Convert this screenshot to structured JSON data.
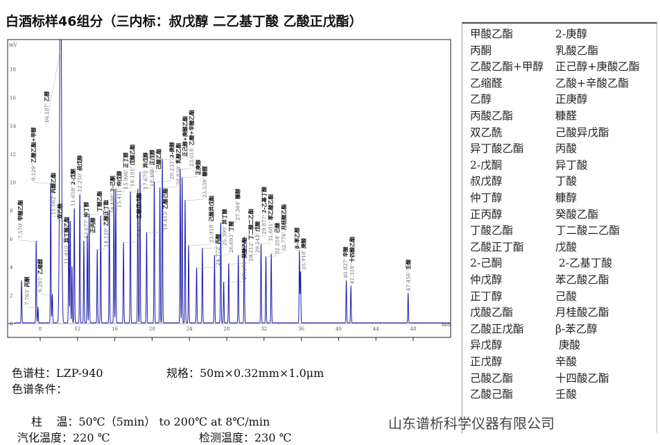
{
  "title": "白酒标样46组分（三内标：叔戊醇 二乙基丁酸 乙酸正戊酯）",
  "chart_data": {
    "type": "line",
    "title": "白酒标样46组分（三内标：叔戊醇 二乙基丁酸 乙酸正戊酯）",
    "ylabel": "mV",
    "xlabel": "min",
    "xlim": [
      4.5,
      52
    ],
    "ylim": [
      0,
      20
    ],
    "x_ticks": [
      8,
      12,
      16,
      20,
      24,
      28,
      32,
      36,
      40,
      44,
      48
    ],
    "y_ticks": [
      0,
      2,
      4,
      6,
      8,
      10,
      12,
      14,
      16,
      18
    ],
    "line_color": "#1a1aa8",
    "peaks": [
      {
        "t": 6.0,
        "h": 3.0,
        "time": "",
        "name": ""
      },
      {
        "t": 7.57,
        "h": 5.8,
        "time": "7.570",
        "name": "甲酸乙酯"
      },
      {
        "t": 7.763,
        "h": 1.1,
        "time": "7.763",
        "name": "丙酮"
      },
      {
        "t": 9.129,
        "h": 9.9,
        "time": "9.129",
        "name": "乙酸乙酯+甲醇"
      },
      {
        "t": 9.297,
        "h": 2.0,
        "time": "9.297",
        "name": "乙缩醛"
      },
      {
        "t": 10.187,
        "h": 30,
        "time": "10.187",
        "name": "乙醇"
      },
      {
        "t": 11.062,
        "h": 7.5,
        "time": "11.062",
        "name": "丙酸乙酯"
      },
      {
        "t": 11.22,
        "h": 7.2,
        "time": "",
        "name": "双乙酰"
      },
      {
        "t": 11.41,
        "h": 4.0,
        "time": "11.410",
        "name": "异丁酸乙酯"
      },
      {
        "t": 11.659,
        "h": 8.1,
        "time": "11.659",
        "name": "2-戊酮"
      },
      {
        "t": 12.25,
        "h": 9.1,
        "time": "12.250",
        "name": "叔戊醇"
      },
      {
        "t": 12.677,
        "h": 5.8,
        "time": "12.677",
        "name": "仲丁醇"
      },
      {
        "t": 13.05,
        "h": 6.2,
        "time": "",
        "name": "正丙醇"
      },
      {
        "t": 13.25,
        "h": 7.7,
        "time": "",
        "name": "丁酸乙酯"
      },
      {
        "t": 14.12,
        "h": 5.2,
        "time": "14.120",
        "name": "乙酸正丁酯"
      },
      {
        "t": 14.488,
        "h": 7.6,
        "time": "14.488",
        "name": "2-己酮"
      },
      {
        "t": 15.411,
        "h": 8.0,
        "time": "15.411",
        "name": "仲戊醇"
      },
      {
        "t": 15.906,
        "h": 9.3,
        "time": "15.906",
        "name": "正丁醇"
      },
      {
        "t": 16.101,
        "h": 9.5,
        "time": "16.101",
        "name": "戊酸乙酯"
      },
      {
        "t": 16.933,
        "h": 5.7,
        "time": "16.933",
        "name": "乙酸正戊酯"
      },
      {
        "t": 17.675,
        "h": 9.3,
        "time": "17.675",
        "name": "异戊醇"
      },
      {
        "t": 18.466,
        "h": 9.5,
        "time": "18.466",
        "name": "正戊醇"
      },
      {
        "t": 18.7,
        "h": 10.7,
        "time": "",
        "name": "己酸乙酯"
      },
      {
        "t": 19.413,
        "h": 6.4,
        "time": "19.413",
        "name": "乙酸己酯"
      },
      {
        "t": 20.233,
        "h": 10.0,
        "time": "20.233",
        "name": "2-庚醇"
      },
      {
        "t": 20.838,
        "h": 9.6,
        "time": "20.838",
        "name": "乳酸乙酯"
      },
      {
        "t": 21.1,
        "h": 11.6,
        "time": "",
        "name": "正己醇+庚酸乙酯"
      },
      {
        "t": 23.018,
        "h": 10.9,
        "time": "23.018",
        "name": "乙酸+辛酸乙酯"
      },
      {
        "t": 23.22,
        "h": 10.3,
        "time": "",
        "name": "正庚醇"
      },
      {
        "t": 23.539,
        "h": 8.7,
        "time": "23.539",
        "name": "糠醛"
      },
      {
        "t": 23.918,
        "h": 5.5,
        "time": "23.918",
        "name": "己酸异戊酯"
      },
      {
        "t": 24.772,
        "h": 3.9,
        "time": "24.772",
        "name": "丙酸"
      },
      {
        "t": 25.39,
        "h": 5.3,
        "time": "25.390",
        "name": "异丁酸"
      },
      {
        "t": 26.693,
        "h": 4.8,
        "time": "26.693",
        "name": "丁酸"
      },
      {
        "t": 27.364,
        "h": 7.1,
        "time": "27.364",
        "name": "糠醇"
      },
      {
        "t": 27.679,
        "h": 2.9,
        "time": "27.679",
        "name": "癸酸乙酯"
      },
      {
        "t": 28.212,
        "h": 4.2,
        "time": "28.212",
        "name": "丁二酸二乙酯"
      },
      {
        "t": 29.243,
        "h": 4.8,
        "time": "29.243",
        "name": "戊酸"
      },
      {
        "t": 29.877,
        "h": 6.1,
        "time": "29.877",
        "name": "2-乙基丁酸"
      },
      {
        "t": 31.681,
        "h": 5.6,
        "time": "31.681",
        "name": "苯乙酸乙酯"
      },
      {
        "t": 32.204,
        "h": 4.7,
        "time": "32.204",
        "name": "己酸"
      },
      {
        "t": 32.776,
        "h": 4.9,
        "time": "32.776",
        "name": "月桂酸乙酯"
      },
      {
        "t": 35.8,
        "h": 5.1,
        "time": "",
        "name": "β-苯乙醇"
      },
      {
        "t": 35.918,
        "h": 3.6,
        "time": "35.918",
        "name": "庚酸"
      },
      {
        "t": 40.827,
        "h": 3.0,
        "time": "40.827",
        "name": "辛酸"
      },
      {
        "t": 41.318,
        "h": 2.6,
        "time": "41.318",
        "name": "十四酸乙酯"
      },
      {
        "t": 47.456,
        "h": 2.1,
        "time": "47.456",
        "name": "壬酸"
      }
    ]
  },
  "legend": {
    "col1": [
      "甲酸乙酯",
      "丙酮",
      "乙酸乙酯+甲醇",
      "乙缩醛",
      "乙醇",
      "丙酸乙酯",
      "双乙酰",
      "异丁酸乙酯",
      "2-戊酮",
      "叔戊醇",
      "仲丁醇",
      "正丙醇",
      "丁酸乙酯",
      "乙酸正丁酯",
      "2-己酮",
      "仲戊醇",
      "正丁醇",
      "戊酸乙酯",
      "乙酸正戊酯",
      "异戊醇",
      "正戊醇",
      "己酸乙酯",
      "乙酸己酯"
    ],
    "col2": [
      "2-庚醇",
      "乳酸乙酯",
      "正己醇+庚酸乙酯",
      "乙酸+辛酸乙酯",
      "正庚醇",
      "糠醛",
      "己酸异戊酯",
      "丙酸",
      "异丁酸",
      "丁酸",
      "糠醇",
      "癸酸乙酯",
      "丁二酸二乙酯",
      "戊酸",
      " 2-乙基丁酸",
      "苯乙酸乙酯",
      "己酸",
      "月桂酸乙酯",
      "β-苯乙醇",
      " 庚酸",
      "辛酸",
      "十四酸乙酯",
      "壬酸"
    ]
  },
  "info": {
    "column": "色谱柱：LZP-940",
    "spec": "规格：50m×0.32mm×1.0μm",
    "conditions": "色谱条件：",
    "oven": "柱    温：50℃（5min） to 200℃ at 8℃/min",
    "injector": "汽化温度：220 ℃",
    "detector": "检测温度：230 ℃"
  },
  "company": "山东谱析科学仪器有限公司"
}
